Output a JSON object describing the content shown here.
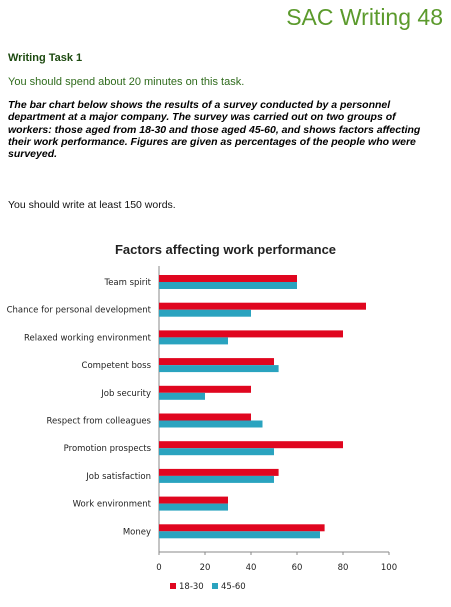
{
  "header": {
    "title": "SAC Writing 48"
  },
  "task": {
    "heading": "Writing Task 1",
    "time_note": "You should spend about 20 minutes on this task.",
    "prompt": "The bar chart below shows the results of a survey conducted by a personnel department at a major company. The survey was carried out on two groups of workers: those aged from 18-30 and those aged 45-60, and shows factors affecting their work performance. Figures are given as percentages of the people who were surveyed.",
    "word_note": "You should write at least 150 words."
  },
  "colors": {
    "series_18_30": "#e0061f",
    "series_45_60": "#2aa3bf",
    "heading_green": "#5b9a2c"
  },
  "chart_data": {
    "type": "bar",
    "orientation": "horizontal",
    "title": "Factors affecting work performance",
    "categories": [
      "Team spirit",
      "Chance for personal development",
      "Relaxed working environment",
      "Competent boss",
      "Job security",
      "Respect from colleagues",
      "Promotion prospects",
      "Job satisfaction",
      "Work environment",
      "Money"
    ],
    "series": [
      {
        "name": "18-30",
        "values": [
          60,
          90,
          80,
          50,
          40,
          40,
          80,
          52,
          30,
          72
        ]
      },
      {
        "name": "45-60",
        "values": [
          60,
          40,
          30,
          52,
          20,
          45,
          50,
          50,
          30,
          70
        ]
      }
    ],
    "xlim": [
      0,
      100
    ],
    "xticks": [
      "0",
      "20",
      "40",
      "60",
      "80",
      "100"
    ],
    "legend": "bottom",
    "grid": false
  }
}
